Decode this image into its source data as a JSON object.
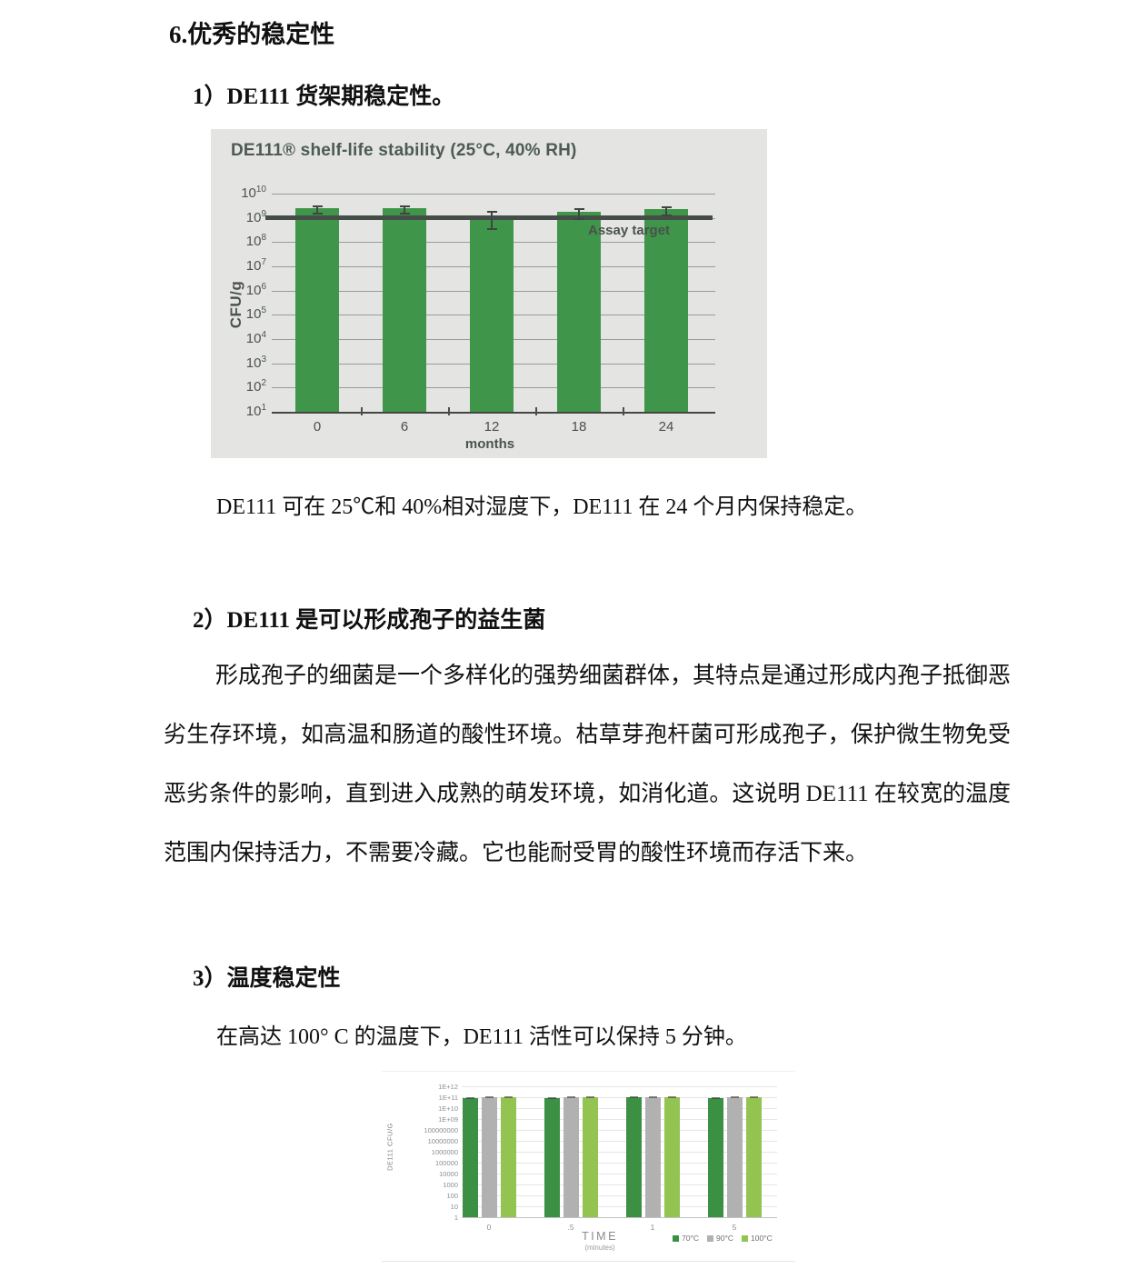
{
  "page": {
    "section_title": "6.优秀的稳定性",
    "sub1_title": "1）DE111 货架期稳定性。",
    "caption1": "DE111 可在 25℃和 40%相对湿度下，DE111 在 24 个月内保持稳定。",
    "sub2_title": "2）DE111 是可以形成孢子的益生菌",
    "para2_lines": [
      "形成孢子的细菌是一个多样化的强势细菌群体，其特点是通过形成内孢子抵御恶",
      "劣生存环境，如高温和肠道的酸性环境。枯草芽孢杆菌可形成孢子，保护微生物免受",
      "恶劣条件的影响，直到进入成熟的萌发环境，如消化道。这说明 DE111 在较宽的温度",
      "范围内保持活力，不需要冷藏。它也能耐受胃的酸性环境而存活下来。"
    ],
    "sub3_title": "3）温度稳定性",
    "para3": "在高达 100° C 的温度下，DE111 活性可以保持 5 分钟。"
  },
  "chart_data": [
    {
      "type": "bar",
      "title": "DE111® shelf-life stability (25°C, 40% RH)",
      "xlabel": "months",
      "ylabel": "CFU/g",
      "y_scale": "log",
      "ylim": [
        10,
        10000000000
      ],
      "y_tick_exponents": [
        10,
        9,
        8,
        7,
        6,
        5,
        4,
        3,
        2,
        1
      ],
      "categories": [
        "0",
        "6",
        "12",
        "18",
        "24"
      ],
      "values": [
        2600000000.0,
        2600000000.0,
        1000000000.0,
        1800000000.0,
        2300000000.0
      ],
      "error_high": [
        3400000000.0,
        3400000000.0,
        1900000000.0,
        2600000000.0,
        3100000000.0
      ],
      "error_low": [
        2000000000.0,
        2000000000.0,
        450000000.0,
        1200000000.0,
        1700000000.0
      ],
      "annotation": "Assay target",
      "target_value": 1000000000.0,
      "grid": true,
      "legend_position": "none",
      "colors": {
        "bar": "#3f9549",
        "background": "#e4e5e2",
        "grid": "#969c96",
        "axis_text": "#4c544e",
        "target_line": "#454d48"
      }
    },
    {
      "type": "bar",
      "categories": [
        "0",
        ".5",
        "1",
        "5"
      ],
      "series": [
        {
          "name": "70°C",
          "color": "#3b9044",
          "values": [
            90000000000.0,
            90000000000.0,
            95000000000.0,
            78000000000.0
          ]
        },
        {
          "name": "90°C",
          "color": "#b1b1b1",
          "values": [
            105000000000.0,
            100000000000.0,
            100000000000.0,
            100000000000.0
          ]
        },
        {
          "name": "100°C",
          "color": "#93c351",
          "values": [
            95000000000.0,
            105000000000.0,
            98000000000.0,
            95000000000.0
          ]
        }
      ],
      "xlabel": "TIME",
      "xlabel_sub": "(minutes)",
      "ylabel": "DE111 CFU/G",
      "y_scale": "log",
      "ylim": [
        1,
        1000000000000.0
      ],
      "y_ticks": [
        "1E+12",
        "1E+11",
        "1E+10",
        "1E+09",
        "100000000",
        "10000000",
        "1000000",
        "100000",
        "10000",
        "1000",
        "100",
        "10",
        "1"
      ],
      "grid": true,
      "legend_position": "bottom-right",
      "colors": {
        "grid": "#e5e5e5",
        "axis_text": "#8d8d8d",
        "legend_text": "#6e6e6e"
      }
    }
  ]
}
